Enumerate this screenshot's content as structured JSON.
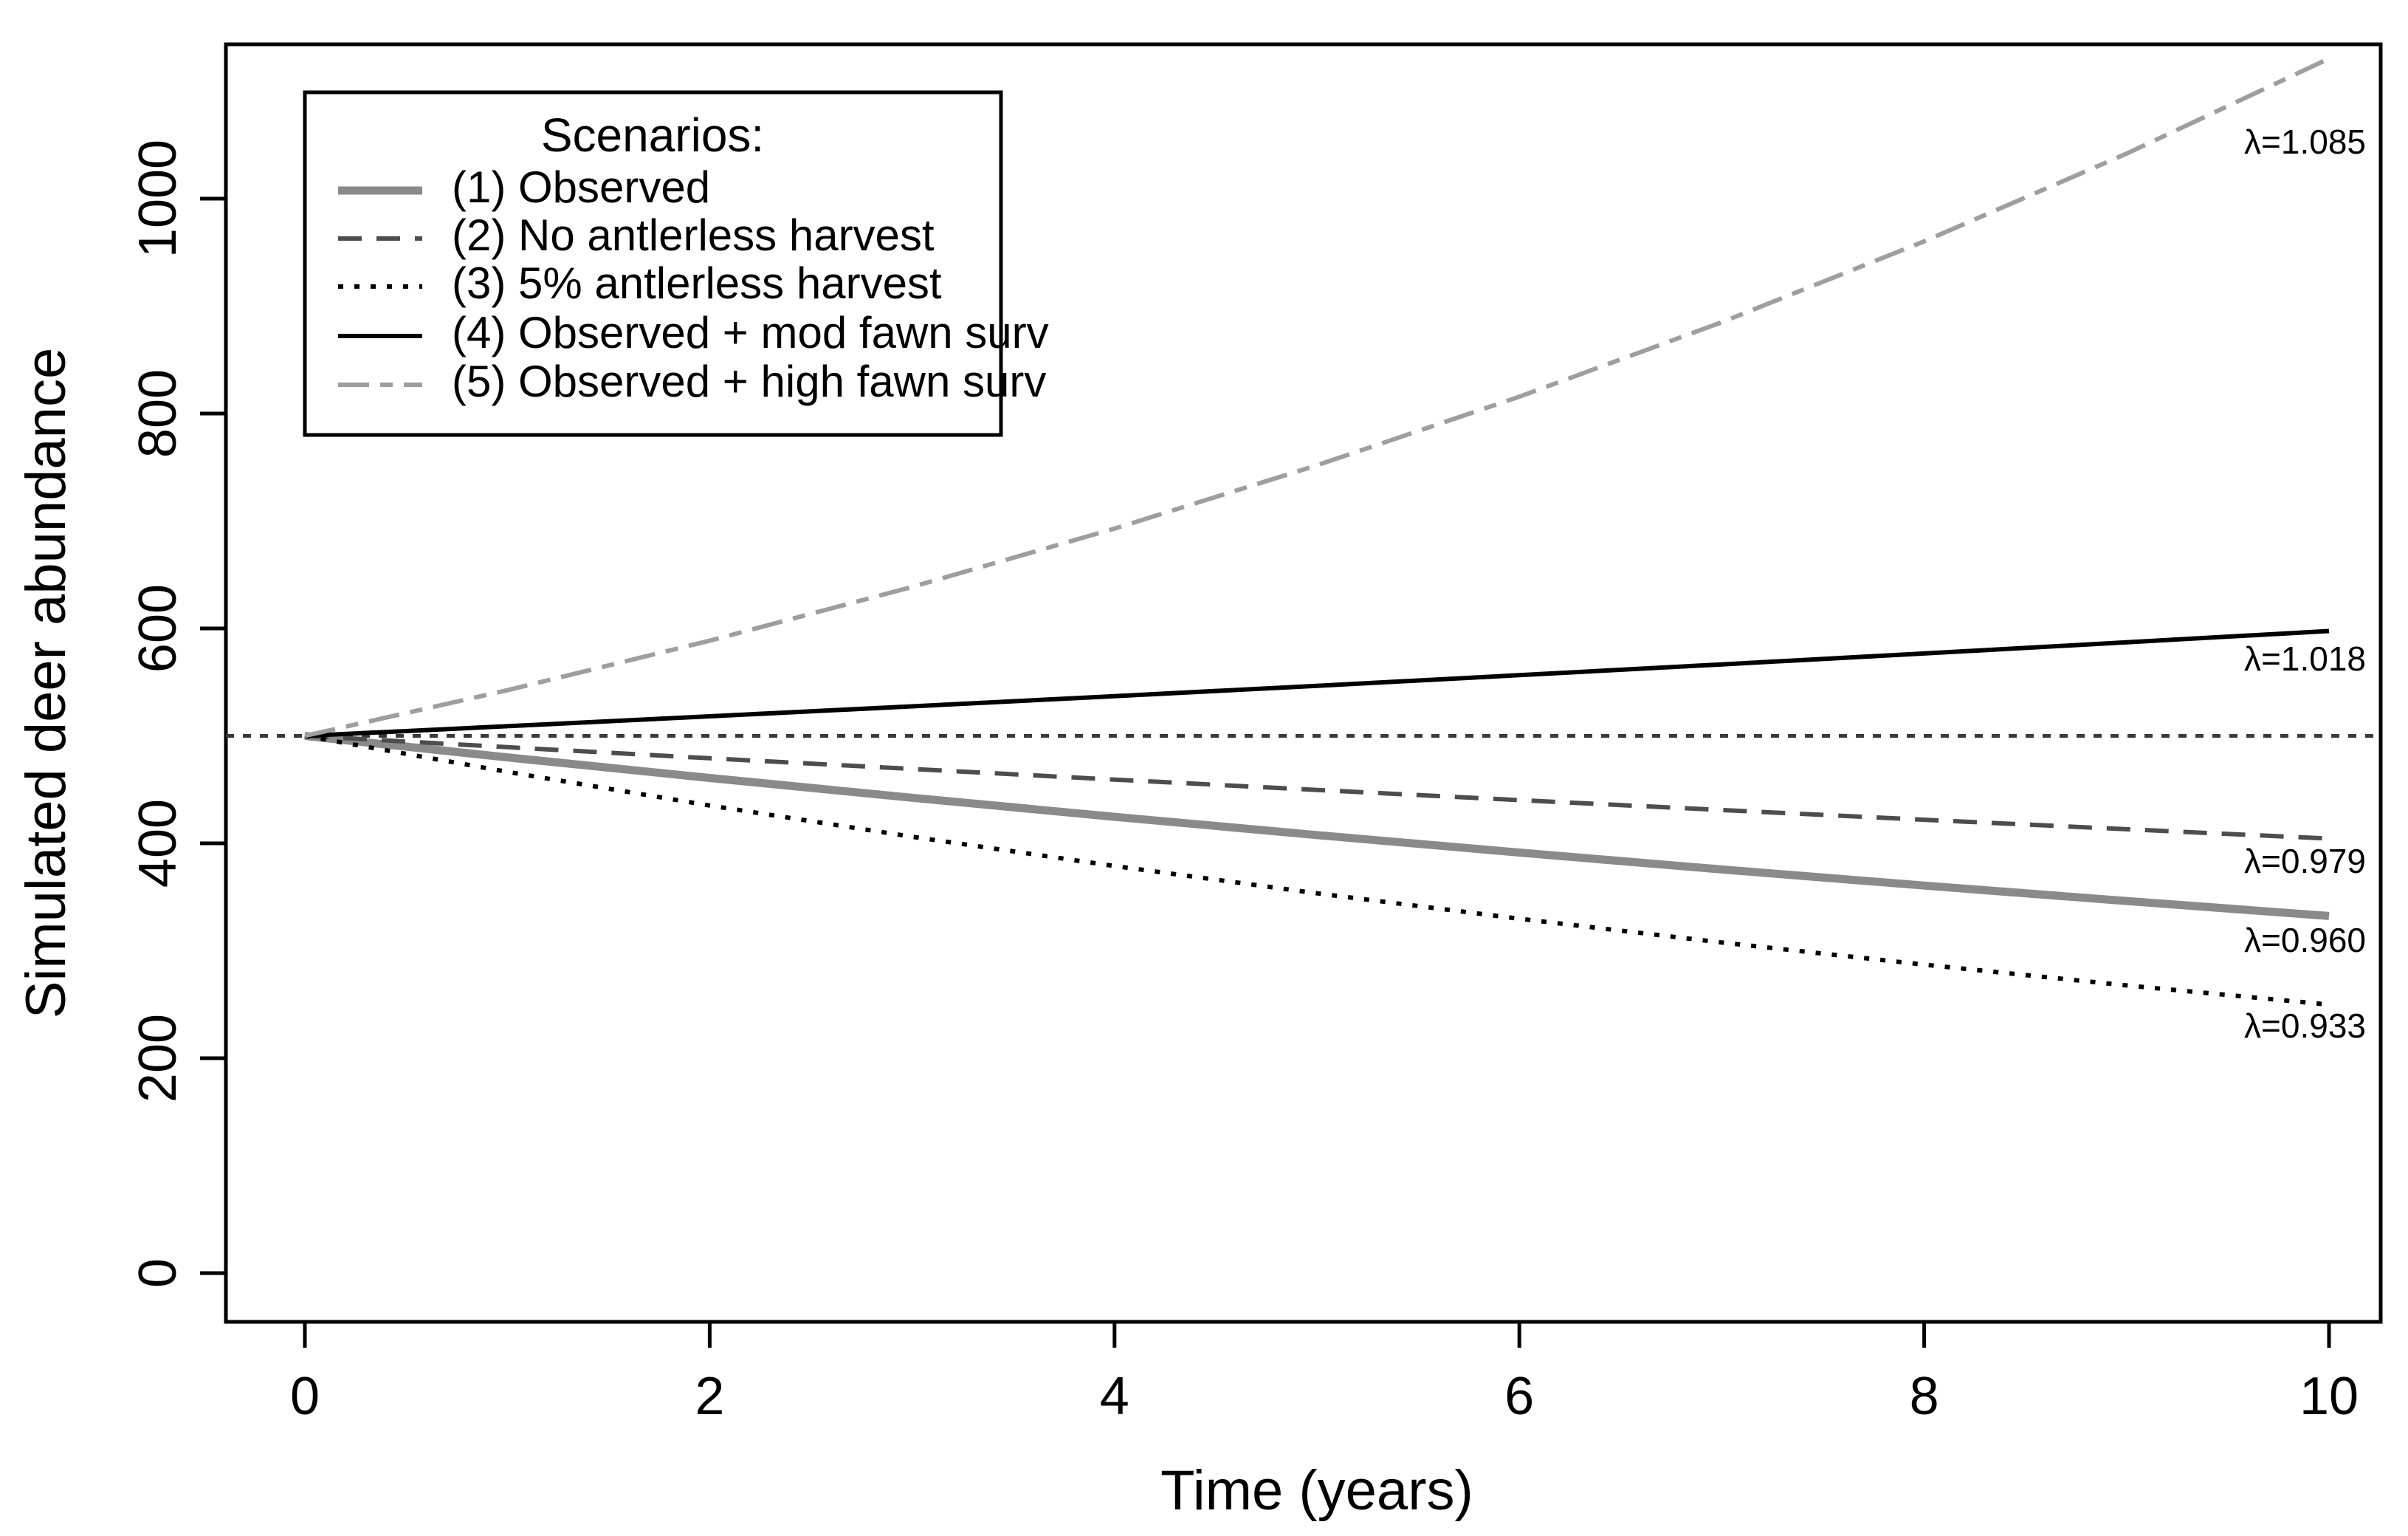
{
  "figure": {
    "description": "Line chart of simulated deer abundance over 10 years under five management scenarios"
  },
  "legend": {
    "title": "Scenarios:"
  },
  "chart_data": {
    "type": "line",
    "title": "",
    "xlabel": "Time (years)",
    "ylabel": "Simulated deer abundance",
    "xlim": [
      0,
      10
    ],
    "ylim": [
      0,
      1150
    ],
    "x_ticks": [
      "0",
      "2",
      "4",
      "6",
      "8",
      "10"
    ],
    "x_tick_values": [
      0,
      2,
      4,
      6,
      8,
      10
    ],
    "y_ticks": [
      "0",
      "200",
      "400",
      "600",
      "800",
      "1000"
    ],
    "y_tick_values": [
      0,
      200,
      400,
      600,
      800,
      1000
    ],
    "grid": false,
    "legend_position": "top-left",
    "legend_title": "Scenarios:",
    "initial_abundance": 500,
    "reference_line": {
      "value": 500,
      "style": "dotted",
      "color": "#3a3a3a",
      "width": 5
    },
    "x_years": [
      0,
      1,
      2,
      3,
      4,
      5,
      6,
      7,
      8,
      9,
      10
    ],
    "series": [
      {
        "name": "(1) Observed",
        "lambda": 0.96,
        "lambda_label": "λ=0.960",
        "color": "#8a8a8a",
        "style": "solid",
        "width": 11,
        "values": [
          500,
          480.0,
          460.8,
          442.4,
          424.7,
          407.7,
          391.4,
          375.7,
          360.7,
          346.3,
          332.4
        ]
      },
      {
        "name": "(2) No antlerless harvest",
        "lambda": 0.979,
        "lambda_label": "λ=0.979",
        "color": "#4d4d4d",
        "style": "dashed",
        "width": 6,
        "values": [
          500,
          489.5,
          479.2,
          469.2,
          459.3,
          449.7,
          440.2,
          431.0,
          421.9,
          413.1,
          404.4
        ]
      },
      {
        "name": "(3) 5% antlerless harvest",
        "lambda": 0.933,
        "lambda_label": "λ=0.933",
        "color": "#000000",
        "style": "dotted",
        "width": 6,
        "values": [
          500,
          466.5,
          435.2,
          406.1,
          378.9,
          353.5,
          329.8,
          307.7,
          287.1,
          267.8,
          249.9
        ]
      },
      {
        "name": "(4) Observed + mod fawn surv",
        "lambda": 1.018,
        "lambda_label": "λ=1.018",
        "color": "#000000",
        "style": "solid",
        "width": 6,
        "values": [
          500,
          509.0,
          518.2,
          527.5,
          537.0,
          546.6,
          556.5,
          566.5,
          576.7,
          587.1,
          597.6
        ]
      },
      {
        "name": "(5) Observed + high fawn surv",
        "lambda": 1.085,
        "lambda_label": "λ=1.085",
        "color": "#9e9e9e",
        "style": "dashdot",
        "width": 6,
        "values": [
          500,
          542.5,
          588.6,
          638.6,
          692.9,
          751.8,
          815.7,
          885.0,
          960.3,
          1041.9,
          1130.4
        ]
      }
    ]
  }
}
